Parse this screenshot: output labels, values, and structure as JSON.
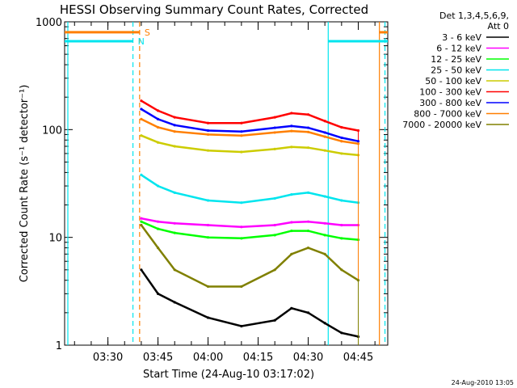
{
  "chart_data": {
    "type": "line",
    "title": "HESSI Observing Summary Count Rates, Corrected",
    "xlabel": "Start Time (24-Aug-10 03:17:02)",
    "ylabel": "Corrected Count Rate (s⁻¹ detector⁻¹)",
    "yscale": "log",
    "ylim": [
      1,
      1000
    ],
    "xlim": [
      "03:17:02",
      "04:53:50"
    ],
    "x_ticks": [
      "03:30",
      "03:45",
      "04:00",
      "04:15",
      "04:30",
      "04:45"
    ],
    "y_ticks": [
      "1",
      "10",
      "100",
      "1000"
    ],
    "legend_header": [
      "Det 1,3,4,5,6,9,",
      "Att 0"
    ],
    "legend_position": "right-outside",
    "footer_date": "24-Aug-2010 13:05",
    "flags": [
      {
        "label": "S",
        "color": "#ff7f00",
        "start": "03:17:02",
        "end": "03:39:30",
        "y": 800
      },
      {
        "label": "N",
        "color": "#00e5ee",
        "start": "03:17:02",
        "end": "03:37:30",
        "y": 660
      }
    ],
    "flags_after": [
      {
        "color": "#00e5ee",
        "start": "04:36:00",
        "end": "04:53:50",
        "y": 660
      },
      {
        "color": "#ff7f00",
        "start": "04:51:20",
        "end": "04:53:50",
        "y": 800
      }
    ],
    "vertical_markers": [
      {
        "time": "03:18:00",
        "color": "#00e5ee",
        "dash": false
      },
      {
        "time": "03:37:30",
        "color": "#00e5ee",
        "dash": true
      },
      {
        "time": "03:39:30",
        "color": "#ff7f00",
        "dash": true
      },
      {
        "time": "04:36:00",
        "color": "#00e5ee",
        "dash": false
      },
      {
        "time": "04:51:20",
        "color": "#ff7f00",
        "dash": false
      },
      {
        "time": "04:53:00",
        "color": "#00e5ee",
        "dash": true
      }
    ],
    "series": [
      {
        "name": "3 - 6 keV",
        "color": "#000000",
        "x": [
          "03:40",
          "03:45",
          "03:50",
          "04:00",
          "04:10",
          "04:20",
          "04:25",
          "04:30",
          "04:35",
          "04:40",
          "04:45"
        ],
        "values": [
          5,
          3,
          2.5,
          1.8,
          1.5,
          1.7,
          2.2,
          2.0,
          1.6,
          1.3,
          1.2
        ]
      },
      {
        "name": "6 - 12 keV",
        "color": "#ff00ff",
        "x": [
          "03:40",
          "03:45",
          "03:50",
          "04:00",
          "04:10",
          "04:20",
          "04:25",
          "04:30",
          "04:35",
          "04:40",
          "04:45"
        ],
        "values": [
          15,
          14,
          13.5,
          13,
          12.5,
          13,
          13.8,
          14,
          13.5,
          13,
          13
        ]
      },
      {
        "name": "12 - 25 keV",
        "color": "#00ff00",
        "x": [
          "03:40",
          "03:45",
          "03:50",
          "04:00",
          "04:10",
          "04:20",
          "04:25",
          "04:30",
          "04:35",
          "04:40",
          "04:45"
        ],
        "values": [
          14,
          12,
          11,
          10,
          9.8,
          10.5,
          11.5,
          11.5,
          10.5,
          9.8,
          9.5
        ]
      },
      {
        "name": "25 - 50 keV",
        "color": "#00e5ee",
        "x": [
          "03:40",
          "03:45",
          "03:50",
          "04:00",
          "04:10",
          "04:20",
          "04:25",
          "04:30",
          "04:35",
          "04:40",
          "04:45"
        ],
        "values": [
          38,
          30,
          26,
          22,
          21,
          23,
          25,
          26,
          24,
          22,
          21
        ]
      },
      {
        "name": "50 - 100 keV",
        "color": "#cccc00",
        "x": [
          "03:40",
          "03:45",
          "03:50",
          "04:00",
          "04:10",
          "04:20",
          "04:25",
          "04:30",
          "04:35",
          "04:40",
          "04:45"
        ],
        "values": [
          88,
          76,
          70,
          64,
          62,
          66,
          69,
          68,
          64,
          60,
          58
        ]
      },
      {
        "name": "100 - 300 keV",
        "color": "#ff0000",
        "x": [
          "03:40",
          "03:45",
          "03:50",
          "04:00",
          "04:10",
          "04:20",
          "04:25",
          "04:30",
          "04:35",
          "04:40",
          "04:45"
        ],
        "values": [
          185,
          150,
          130,
          115,
          115,
          130,
          142,
          138,
          120,
          105,
          98
        ]
      },
      {
        "name": "300 - 800 keV",
        "color": "#0000ff",
        "x": [
          "03:40",
          "03:45",
          "03:50",
          "04:00",
          "04:10",
          "04:20",
          "04:25",
          "04:30",
          "04:35",
          "04:40",
          "04:45"
        ],
        "values": [
          155,
          125,
          110,
          98,
          96,
          104,
          108,
          104,
          94,
          84,
          78
        ]
      },
      {
        "name": "800 - 7000 keV",
        "color": "#ff7f00",
        "x": [
          "03:40",
          "03:45",
          "03:50",
          "04:00",
          "04:10",
          "04:20",
          "04:25",
          "04:30",
          "04:35",
          "04:40",
          "04:45"
        ],
        "values": [
          125,
          105,
          96,
          90,
          88,
          94,
          97,
          95,
          86,
          78,
          74
        ]
      },
      {
        "name": "7000 - 20000 keV",
        "color": "#808000",
        "x": [
          "03:40",
          "03:45",
          "03:50",
          "04:00",
          "04:10",
          "04:20",
          "04:25",
          "04:30",
          "04:35",
          "04:40",
          "04:45"
        ],
        "values": [
          13,
          8,
          5,
          3.5,
          3.5,
          5,
          7,
          8,
          7,
          5,
          4
        ]
      }
    ]
  }
}
